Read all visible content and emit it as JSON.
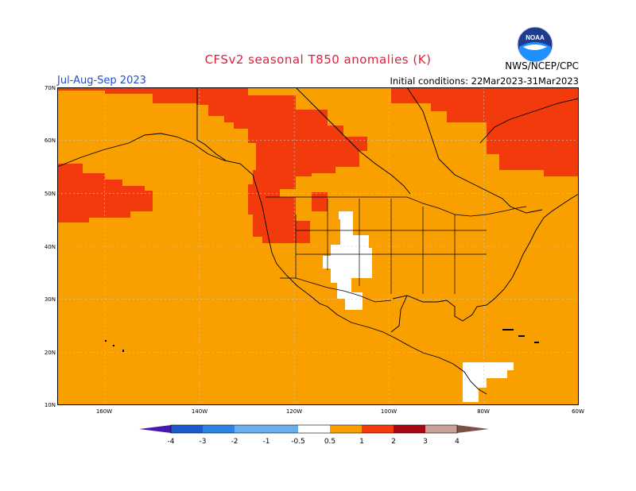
{
  "header": {
    "title": "CFSv2 seasonal T850 anomalies (K)",
    "period": "Jul-Aug-Sep 2023",
    "initial_conditions": "Initial conditions: 22Mar2023-31Mar2023",
    "agency": "NWS/NCEP/CPC",
    "logo_text": "NOAA"
  },
  "map": {
    "lat_labels": [
      "70N",
      "60N",
      "50N",
      "40N",
      "30N",
      "20N",
      "10N"
    ],
    "lon_labels": [
      "160W",
      "140W",
      "120W",
      "100W",
      "80W",
      "60W"
    ],
    "colors": {
      "base_anomaly": "#f99f00",
      "high_anomaly": "#f23a0c",
      "neutral": "#ffffff"
    }
  },
  "legend": {
    "tick_labels": [
      "-4",
      "-3",
      "-2",
      "-1",
      "-0.5",
      "0.5",
      "1",
      "2",
      "3",
      "4"
    ],
    "colors": [
      "#4419ad",
      "#1a5cd0",
      "#2b84e8",
      "#6aaef0",
      "#ffffff",
      "#f99f00",
      "#f23a0c",
      "#a60710",
      "#c9a098",
      "#7a5044"
    ]
  }
}
